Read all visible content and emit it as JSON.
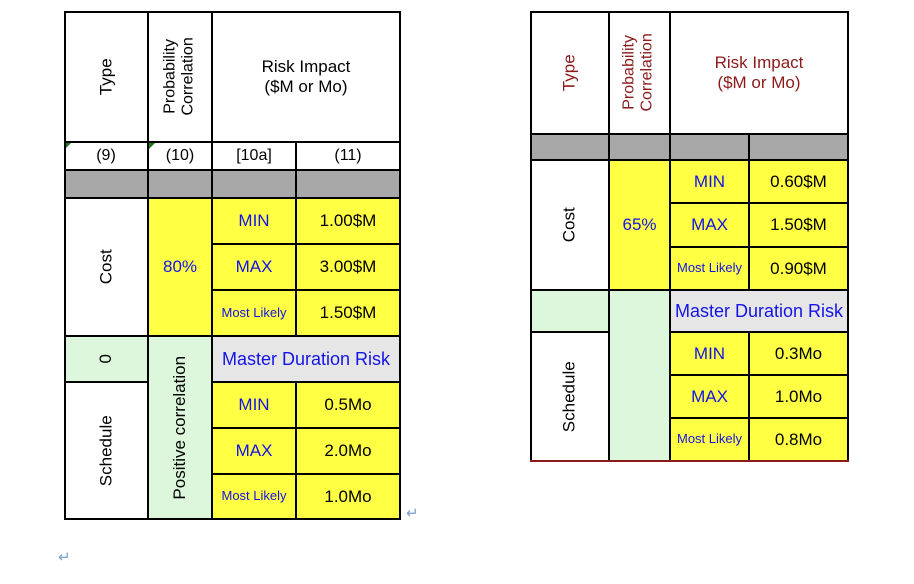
{
  "left_table": {
    "headers": {
      "type": "Type",
      "prob_corr": "Probability\nCorrelation",
      "risk_impact": "Risk Impact\n($M or Mo)"
    },
    "col_numbers": [
      "(9)",
      "(10)",
      "[10a]",
      "(11)"
    ],
    "cost": {
      "type_label": "Cost",
      "correlation": "80%",
      "rows": [
        {
          "label": "MIN",
          "value": "1.00$M"
        },
        {
          "label": "MAX",
          "value": "3.00$M"
        },
        {
          "label": "Most Likely",
          "value": "1.50$M"
        }
      ]
    },
    "master": {
      "type_label": "0",
      "label": "Master Duration Risk"
    },
    "schedule": {
      "type_label": "Schedule",
      "correlation": "Positive correlation",
      "rows": [
        {
          "label": "MIN",
          "value": "0.5Mo"
        },
        {
          "label": "MAX",
          "value": "2.0Mo"
        },
        {
          "label": "Most Likely",
          "value": "1.0Mo"
        }
      ]
    }
  },
  "right_table": {
    "headers": {
      "type": "Type",
      "prob_corr": "Probability\nCorrelation",
      "risk_impact": "Risk Impact\n($M or Mo)"
    },
    "cost": {
      "type_label": "Cost",
      "correlation": "65%",
      "rows": [
        {
          "label": "MIN",
          "value": "0.60$M"
        },
        {
          "label": "MAX",
          "value": "1.50$M"
        },
        {
          "label": "Most Likely",
          "value": "0.90$M"
        }
      ]
    },
    "master": {
      "label": "Master Duration Risk"
    },
    "schedule": {
      "type_label": "Schedule",
      "rows": [
        {
          "label": "MIN",
          "value": "0.3Mo"
        },
        {
          "label": "MAX",
          "value": "1.0Mo"
        },
        {
          "label": "Most Likely",
          "value": "0.8Mo"
        }
      ]
    }
  },
  "marks": {
    "return_symbol": "↵"
  }
}
